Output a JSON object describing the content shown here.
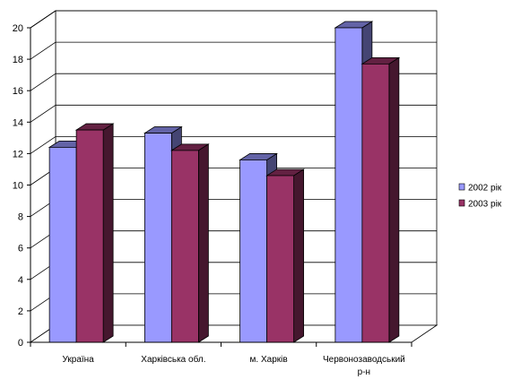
{
  "chart_data": {
    "type": "bar",
    "title": "",
    "xlabel": "",
    "ylabel": "",
    "categories": [
      [
        "Україна"
      ],
      [
        "Харківська обл."
      ],
      [
        "м. Харків"
      ],
      [
        "Червонозаводський",
        "р-н"
      ]
    ],
    "series": [
      {
        "name": "2002 рік",
        "values": [
          12.4,
          13.3,
          11.6,
          20
        ],
        "color": "#9999ff"
      },
      {
        "name": "2003 рік",
        "values": [
          13.5,
          12.2,
          10.6,
          17.7
        ],
        "color": "#993366"
      }
    ],
    "ylim": [
      0,
      20
    ],
    "yticks": [
      0,
      2,
      4,
      6,
      8,
      10,
      12,
      14,
      16,
      18,
      20
    ],
    "grid": true,
    "legend": "right",
    "style": "3d-clustered-column"
  }
}
